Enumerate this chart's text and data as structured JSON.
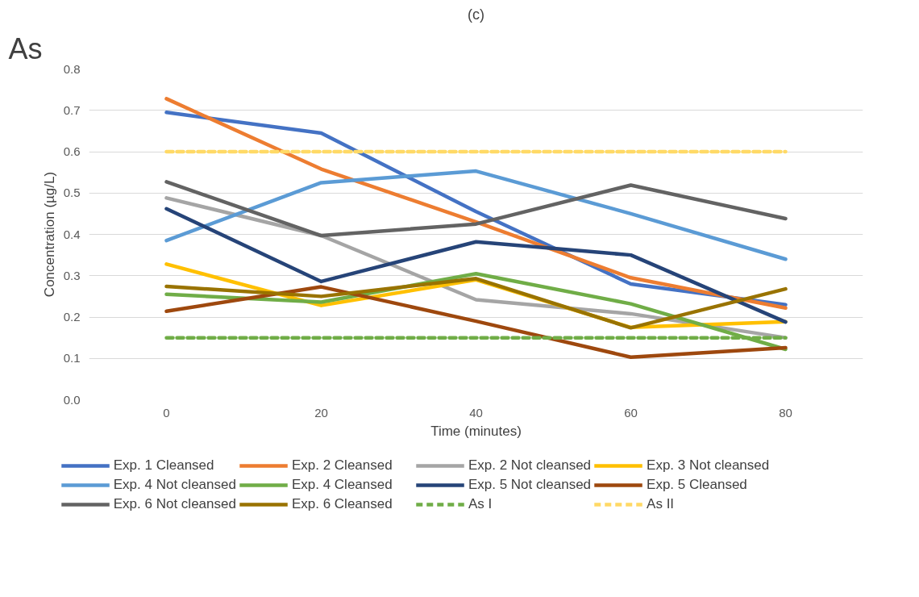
{
  "chart_data": {
    "type": "line",
    "title": "(c)",
    "xlabel": "Time (minutes)",
    "ylabel": "Concentration (µg/L)",
    "annotations": [
      "As"
    ],
    "x": [
      0,
      20,
      40,
      60,
      80
    ],
    "xlim": [
      -10,
      90
    ],
    "xticks": [
      0,
      20,
      40,
      60,
      80
    ],
    "ylim": [
      0,
      0.8
    ],
    "yticks": [
      {
        "value": 0,
        "label": "0.0"
      },
      0.1,
      0.2,
      0.3,
      0.4,
      0.5,
      0.6,
      0.7,
      0.8
    ],
    "grid": "y",
    "legend": "bottom",
    "marker": "none",
    "line_style": "solid",
    "series": [
      {
        "name": "Exp. 1 Cleansed",
        "color": "#4472c4",
        "values": [
          0.695,
          0.645,
          0.455,
          0.28,
          0.23
        ]
      },
      {
        "name": "Exp. 2 Cleansed",
        "color": "#ed7d31",
        "values": [
          0.728,
          0.558,
          0.43,
          0.295,
          0.222
        ]
      },
      {
        "name": "Exp. 2 Not cleansed",
        "color": "#a5a5a5",
        "values": [
          0.488,
          0.397,
          0.242,
          0.208,
          0.15
        ]
      },
      {
        "name": "Exp. 3 Not cleansed",
        "color": "#ffc000",
        "values": [
          0.328,
          0.228,
          0.29,
          0.175,
          0.189
        ]
      },
      {
        "name": "Exp. 4 Not cleansed",
        "color": "#5b9bd5",
        "values": [
          0.385,
          0.525,
          0.553,
          0.45,
          0.34
        ]
      },
      {
        "name": "Exp. 4 Cleansed",
        "color": "#70ad47",
        "values": [
          0.255,
          0.236,
          0.305,
          0.232,
          0.122
        ]
      },
      {
        "name": "Exp. 5 Not cleansed",
        "color": "#264478",
        "values": [
          0.462,
          0.286,
          0.382,
          0.35,
          0.188
        ]
      },
      {
        "name": "Exp. 5 Cleansed",
        "color": "#9e480e",
        "values": [
          0.214,
          0.273,
          0.19,
          0.103,
          0.126
        ]
      },
      {
        "name": "Exp. 6 Not cleansed",
        "color": "#636363",
        "values": [
          0.527,
          0.397,
          0.425,
          0.519,
          0.438
        ]
      },
      {
        "name": "Exp. 6 Cleansed",
        "color": "#997300",
        "values": [
          0.274,
          0.25,
          0.293,
          0.174,
          0.268
        ]
      },
      {
        "name": "As I",
        "color": "#70ad47",
        "line_style": "dashed",
        "values": [
          0.15,
          0.15,
          0.15,
          0.15,
          0.15
        ]
      },
      {
        "name": "As II",
        "color": "#ffd966",
        "line_style": "dashed",
        "values": [
          0.6,
          0.6,
          0.6,
          0.6,
          0.6
        ]
      }
    ]
  }
}
